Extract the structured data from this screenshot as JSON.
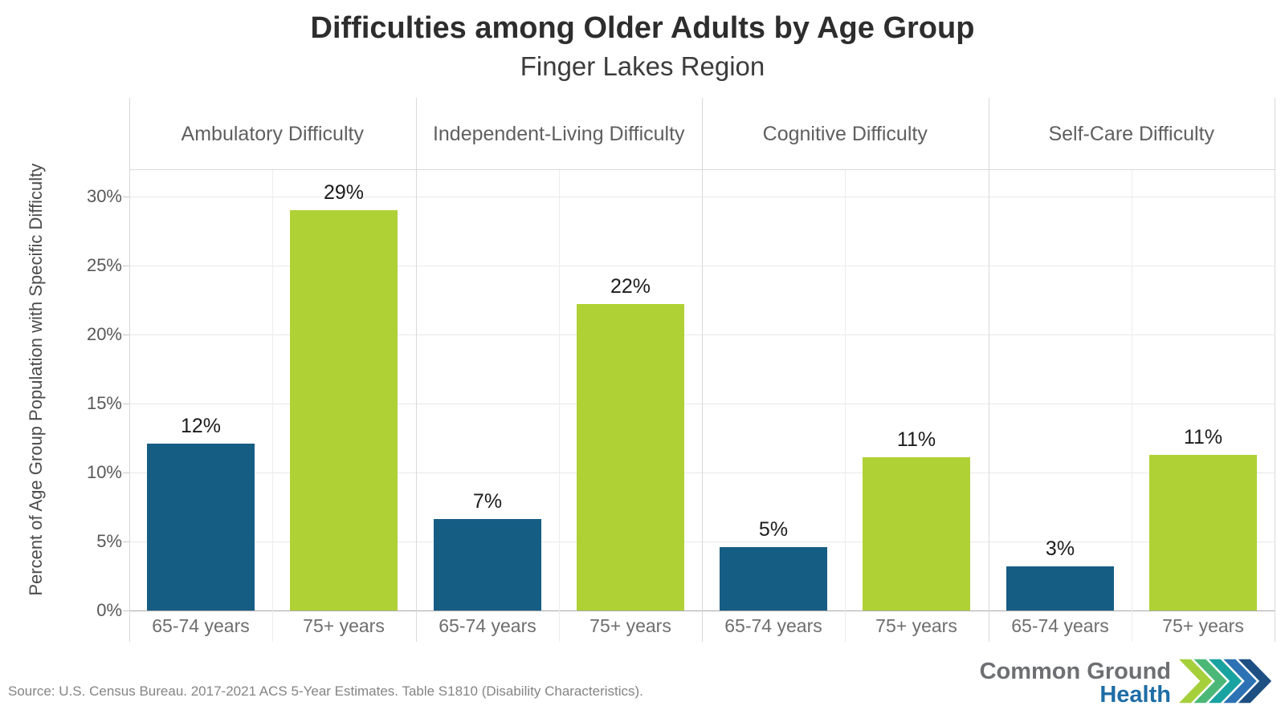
{
  "title": "Difficulties among Older Adults by Age Group",
  "subtitle": "Finger Lakes Region",
  "source": "Source: U.S. Census Bureau. 2017-2021 ACS 5-Year Estimates. Table S1810 (Disability Characteristics).",
  "logo": {
    "name_line1": "Common Ground",
    "name_line2": "Health",
    "text_gray": "#6d6f72",
    "text_blue": "#1e6da6",
    "chevron_colors": [
      "#a6d03b",
      "#4cb878",
      "#18a3a0",
      "#2c72b4",
      "#1d4f82"
    ]
  },
  "chart_data": {
    "type": "bar",
    "title": "Difficulties among Older Adults by Age Group",
    "subtitle": "Finger Lakes Region",
    "ylabel": "Percent of Age Group Population with Specific Difficulty",
    "ytick_values": [
      0,
      5,
      10,
      15,
      20,
      25,
      30
    ],
    "ytick_labels": [
      "0%",
      "5%",
      "10%",
      "15%",
      "20%",
      "25%",
      "30%"
    ],
    "ylim": [
      0,
      31.5
    ],
    "grid": true,
    "legend_position": "none",
    "categories": [
      "65-74 years",
      "75+ years"
    ],
    "series_colors": {
      "65-74 years": "#165d84",
      "75+ years": "#b0d135"
    },
    "facets": [
      {
        "label": "Ambulatory Difficulty",
        "values": [
          12.1,
          29.0
        ],
        "labels": [
          "12%",
          "29%"
        ]
      },
      {
        "label": "Independent-Living Difficulty",
        "values": [
          6.6,
          22.2
        ],
        "labels": [
          "7%",
          "22%"
        ]
      },
      {
        "label": "Cognitive Difficulty",
        "values": [
          4.6,
          11.1
        ],
        "labels": [
          "5%",
          "11%"
        ]
      },
      {
        "label": "Self-Care Difficulty",
        "values": [
          3.2,
          11.3
        ],
        "labels": [
          "3%",
          "11%"
        ]
      }
    ]
  }
}
